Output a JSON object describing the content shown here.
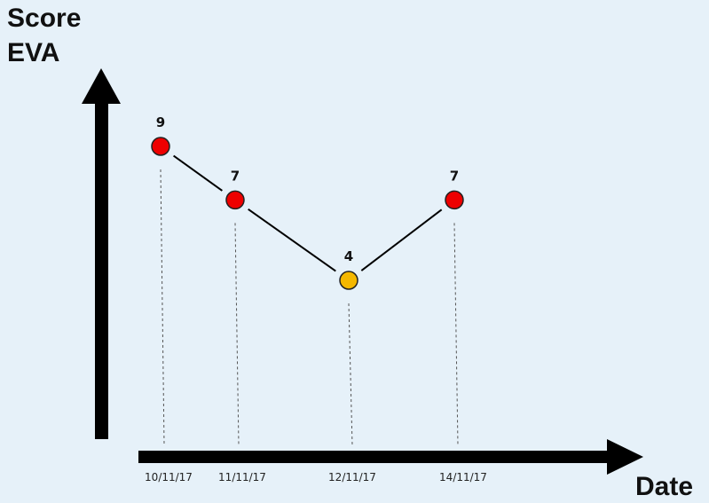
{
  "chart_data": {
    "type": "line",
    "ylabel_lines": [
      "Score",
      "EVA"
    ],
    "xlabel": "Date",
    "x": [
      "10/11/17",
      "11/11/17",
      "12/11/17",
      "14/11/17"
    ],
    "series": [
      {
        "values": [
          9,
          7,
          4,
          7
        ],
        "point_colors": [
          "#ee0000",
          "#ee0000",
          "#f5b800",
          "#ee0000"
        ]
      }
    ],
    "data_labels": [
      "9",
      "7",
      "4",
      "7"
    ],
    "grid": false,
    "legend": "none"
  },
  "colors": {
    "background": "#e6f1f9",
    "axis": "#000000",
    "line": "#000000",
    "guide_lines": "#555555"
  }
}
